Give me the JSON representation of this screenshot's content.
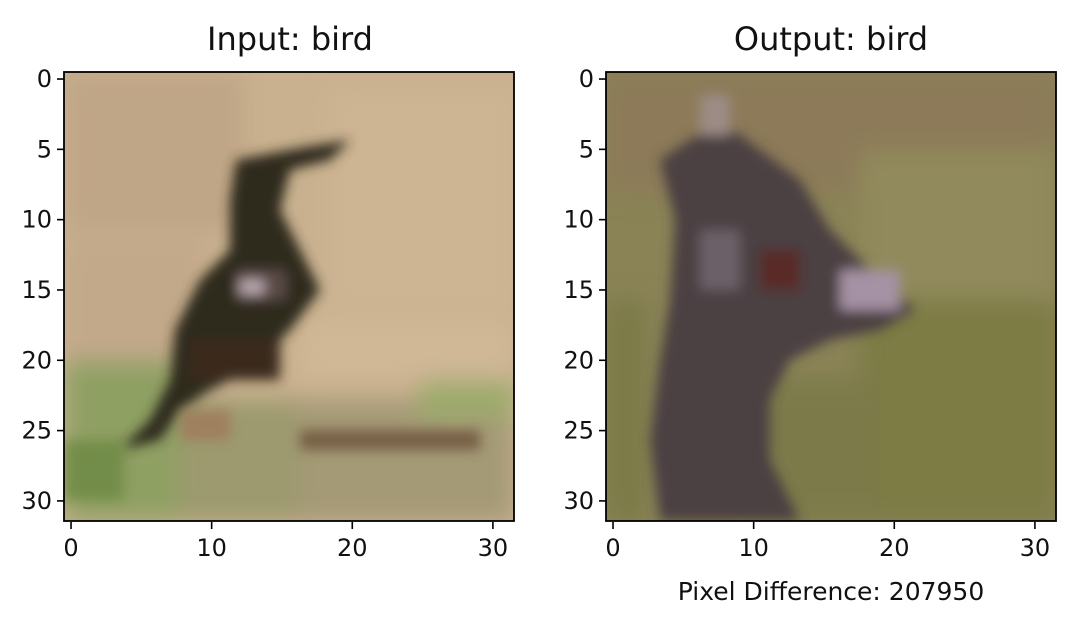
{
  "chart_data": [
    {
      "type": "heatmap",
      "title": "Input: bird",
      "xlim": [
        0,
        31
      ],
      "ylim": [
        0,
        31
      ],
      "xticks": [
        0,
        10,
        20,
        30
      ],
      "yticks": [
        0,
        5,
        10,
        15,
        20,
        25,
        30
      ],
      "grid": false,
      "description": "32x32 pixel image of a dark bird standing on sandy ground with green grass patches at the bottom"
    },
    {
      "type": "heatmap",
      "title": "Output: bird",
      "xlim": [
        0,
        31
      ],
      "ylim": [
        0,
        31
      ],
      "xticks": [
        0,
        10,
        20,
        30
      ],
      "yticks": [
        0,
        5,
        10,
        15,
        20,
        25,
        30
      ],
      "grid": false,
      "caption": "Pixel Difference: 207950",
      "description": "32x32 pixel close-up image of a dark bird head and neck facing right on an olive-green background"
    }
  ],
  "colors": {
    "input_background": "#c8b190",
    "input_grass": "#8a9a5c",
    "input_bird": "#2a251b",
    "output_background": "#8a8458",
    "output_bird": "#4a3d40",
    "axis": "#000000"
  }
}
